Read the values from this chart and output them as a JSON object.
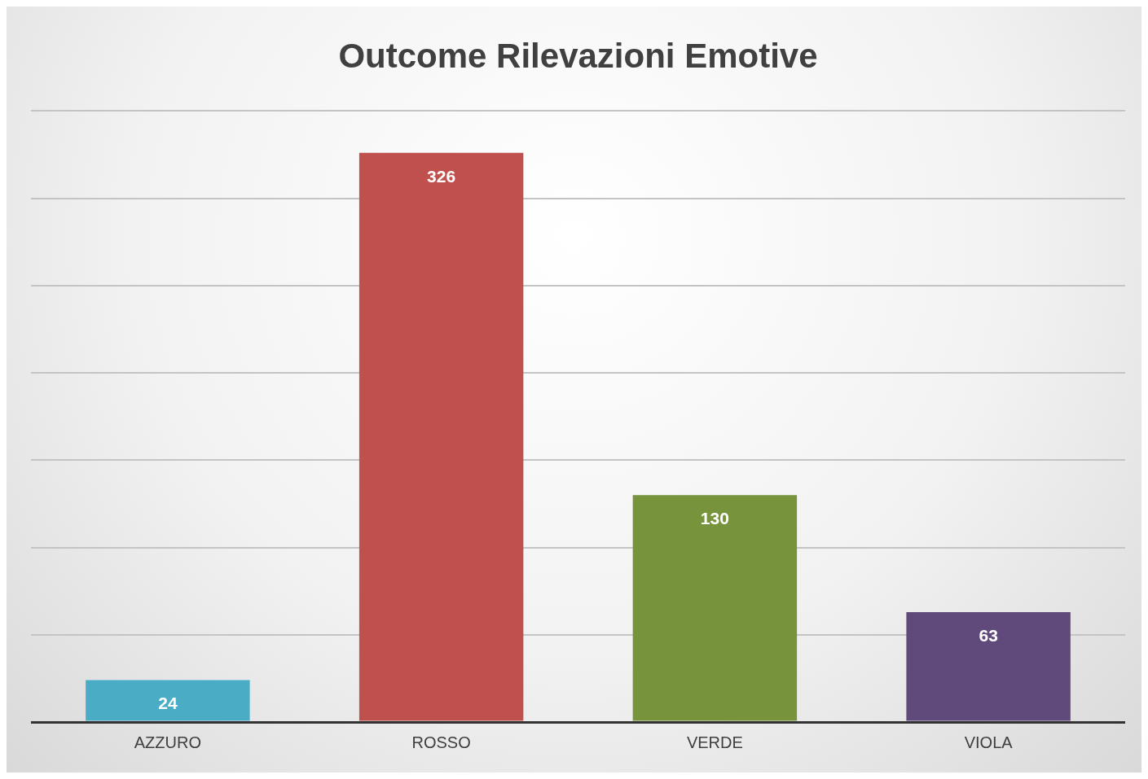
{
  "chart_data": {
    "type": "bar",
    "title": "Outcome Rilevazioni Emotive",
    "categories": [
      "AZZURO",
      "ROSSO",
      "VERDE",
      "VIOLA"
    ],
    "values": [
      24,
      326,
      130,
      63
    ],
    "colors": [
      "#4bacc6",
      "#c0504d",
      "#77933c",
      "#604a7b"
    ],
    "ylim": [
      0,
      350
    ],
    "yticks": [
      {
        "value": 0,
        "label": null
      },
      {
        "value": 50,
        "label": null
      },
      {
        "value": 100,
        "label": null
      },
      {
        "value": 150,
        "label": null
      },
      {
        "value": 200,
        "label": null
      },
      {
        "value": 250,
        "label": null
      },
      {
        "value": 300,
        "label": null
      },
      {
        "value": 350,
        "label": null
      }
    ],
    "tick_labels": "x",
    "grid": "y",
    "legend": false,
    "data_labels": true
  }
}
